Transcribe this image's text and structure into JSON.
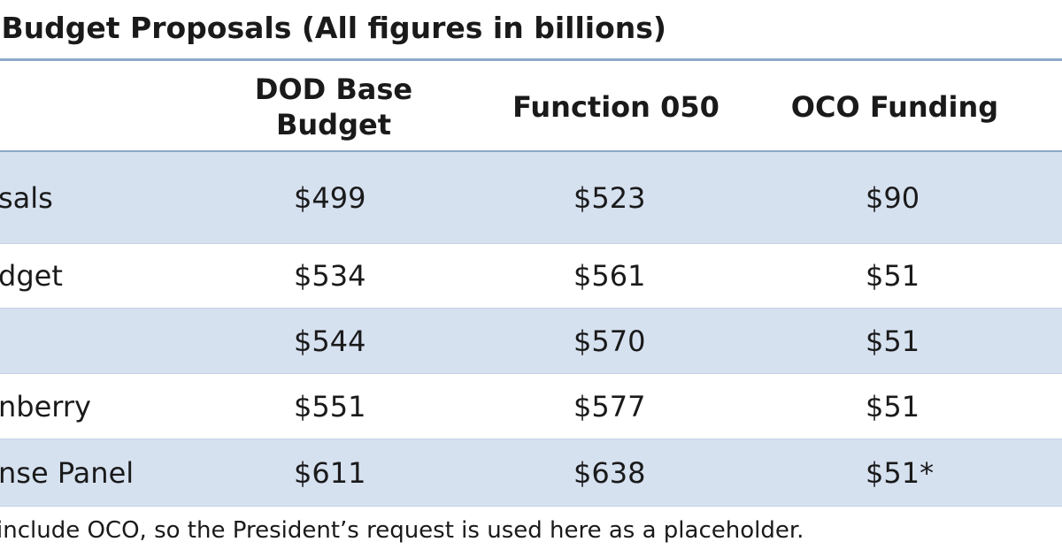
{
  "title": "se Budget Proposals (All figures in billions)",
  "columns": {
    "dod_base": [
      "DOD Base",
      "Budget"
    ],
    "function_050": "Function 050",
    "oco": "OCO Funding"
  },
  "rows": [
    {
      "label": [
        "",
        "sals"
      ],
      "dod_base": "$499",
      "function_050": "$523",
      "oco": "$90"
    },
    {
      "label": [
        "dget"
      ],
      "dod_base": "$534",
      "function_050": "$561",
      "oco": "$51"
    },
    {
      "label": [
        ""
      ],
      "dod_base": "$544",
      "function_050": "$570",
      "oco": "$51"
    },
    {
      "label": [
        "nberry"
      ],
      "dod_base": "$551",
      "function_050": "$577",
      "oco": "$51"
    },
    {
      "label": [
        "nse Panel"
      ],
      "dod_base": "$611",
      "function_050": "$638",
      "oco": "$51*"
    }
  ],
  "footnote": "include OCO, so the President’s request is used here as a placeholder.",
  "colors": {
    "row_shade": "#d6e1f0",
    "rule": "#8ea9c8",
    "row_divider": "#c4d2e4"
  }
}
